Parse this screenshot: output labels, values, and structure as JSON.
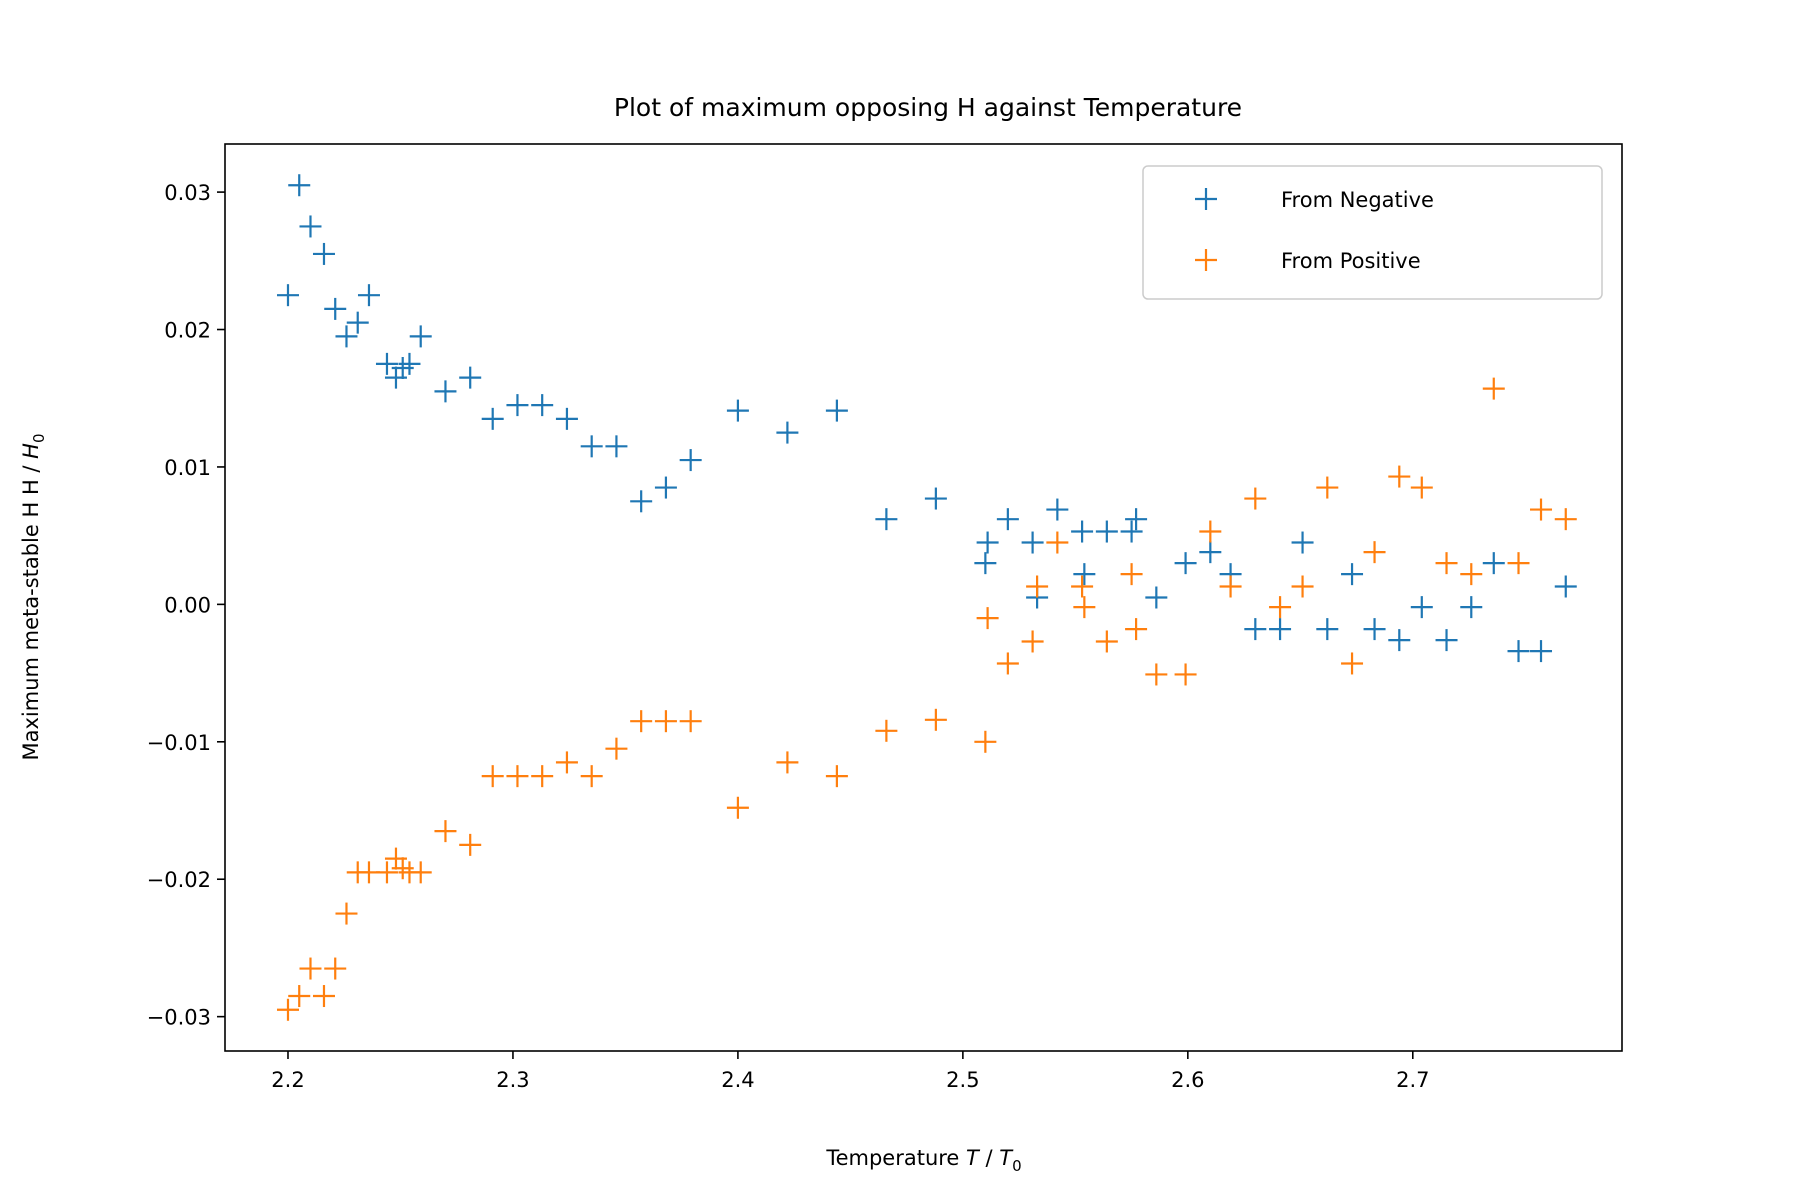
{
  "chart_data": {
    "type": "scatter",
    "title": "Plot of maximum opposing H against Temperature",
    "xlabel": {
      "prefix": "Temperature ",
      "var": "T",
      "sep": " / ",
      "unit": "T",
      "unit_sub": "0"
    },
    "ylabel": {
      "prefix": "Maximum meta-stable H H / ",
      "unit": "H",
      "unit_sub": "0"
    },
    "xlim": [
      2.172,
      2.793
    ],
    "ylim": [
      -0.0325,
      0.0335
    ],
    "xticks": [
      2.2,
      2.3,
      2.4,
      2.5,
      2.6,
      2.7
    ],
    "xtick_labels": [
      "2.2",
      "2.3",
      "2.4",
      "2.5",
      "2.6",
      "2.7"
    ],
    "yticks": [
      -0.03,
      -0.02,
      -0.01,
      0.0,
      0.01,
      0.02,
      0.03
    ],
    "ytick_labels": [
      "−0.03",
      "−0.02",
      "−0.01",
      "0.00",
      "0.01",
      "0.02",
      "0.03"
    ],
    "grid": false,
    "legend_position": "top-right",
    "marker": "+",
    "series": [
      {
        "name": "From Negative",
        "color": "#1f77b4",
        "x": [
          2.2,
          2.205,
          2.21,
          2.216,
          2.221,
          2.226,
          2.231,
          2.236,
          2.244,
          2.248,
          2.251,
          2.254,
          2.259,
          2.27,
          2.281,
          2.291,
          2.302,
          2.313,
          2.324,
          2.335,
          2.346,
          2.357,
          2.368,
          2.379,
          2.4,
          2.422,
          2.444,
          2.466,
          2.488,
          2.51,
          2.511,
          2.52,
          2.531,
          2.533,
          2.542,
          2.553,
          2.554,
          2.564,
          2.575,
          2.577,
          2.586,
          2.599,
          2.61,
          2.619,
          2.63,
          2.641,
          2.651,
          2.662,
          2.673,
          2.683,
          2.694,
          2.704,
          2.715,
          2.726,
          2.736,
          2.747,
          2.757,
          2.768
        ],
        "y": [
          0.0225,
          0.0305,
          0.0275,
          0.0255,
          0.0215,
          0.0195,
          0.0205,
          0.0225,
          0.0175,
          0.0165,
          0.0172,
          0.0175,
          0.0195,
          0.0155,
          0.0165,
          0.0135,
          0.0145,
          0.0145,
          0.0135,
          0.0115,
          0.0115,
          0.0075,
          0.0085,
          0.0105,
          0.0141,
          0.0125,
          0.0141,
          0.0062,
          0.0077,
          0.003,
          0.0045,
          0.0062,
          0.0045,
          0.0005,
          0.0069,
          0.0053,
          0.0022,
          0.0053,
          0.0053,
          0.0062,
          0.0005,
          0.003,
          0.0038,
          0.0022,
          -0.0018,
          -0.0018,
          0.0045,
          -0.0018,
          0.0022,
          -0.0018,
          -0.0026,
          -0.0002,
          -0.0026,
          -0.0002,
          0.003,
          -0.0034,
          -0.0034,
          0.0013
        ]
      },
      {
        "name": "From Positive",
        "color": "#ff7f0e",
        "x": [
          2.2,
          2.205,
          2.21,
          2.216,
          2.221,
          2.226,
          2.231,
          2.236,
          2.244,
          2.248,
          2.251,
          2.254,
          2.259,
          2.27,
          2.281,
          2.291,
          2.302,
          2.313,
          2.324,
          2.335,
          2.346,
          2.357,
          2.368,
          2.379,
          2.4,
          2.422,
          2.444,
          2.466,
          2.488,
          2.51,
          2.511,
          2.52,
          2.531,
          2.533,
          2.542,
          2.553,
          2.554,
          2.564,
          2.575,
          2.577,
          2.586,
          2.599,
          2.61,
          2.619,
          2.63,
          2.641,
          2.651,
          2.662,
          2.673,
          2.683,
          2.694,
          2.704,
          2.715,
          2.726,
          2.736,
          2.747,
          2.757,
          2.768
        ],
        "y": [
          -0.0295,
          -0.0285,
          -0.0265,
          -0.0285,
          -0.0265,
          -0.0225,
          -0.0195,
          -0.0195,
          -0.0195,
          -0.0185,
          -0.0192,
          -0.0195,
          -0.0195,
          -0.0165,
          -0.0175,
          -0.0125,
          -0.0125,
          -0.0125,
          -0.0115,
          -0.0125,
          -0.0105,
          -0.0085,
          -0.0085,
          -0.0085,
          -0.0148,
          -0.0115,
          -0.0125,
          -0.0092,
          -0.0084,
          -0.01,
          -0.001,
          -0.0043,
          -0.0027,
          0.0013,
          0.0045,
          0.0013,
          -0.0002,
          -0.0027,
          0.0022,
          -0.0018,
          -0.0051,
          -0.0051,
          0.0053,
          0.0013,
          0.0077,
          -0.0002,
          0.0013,
          0.0085,
          -0.0043,
          0.0038,
          0.0093,
          0.0085,
          0.003,
          0.0022,
          0.0157,
          0.003,
          0.0069,
          0.0062
        ]
      }
    ]
  }
}
